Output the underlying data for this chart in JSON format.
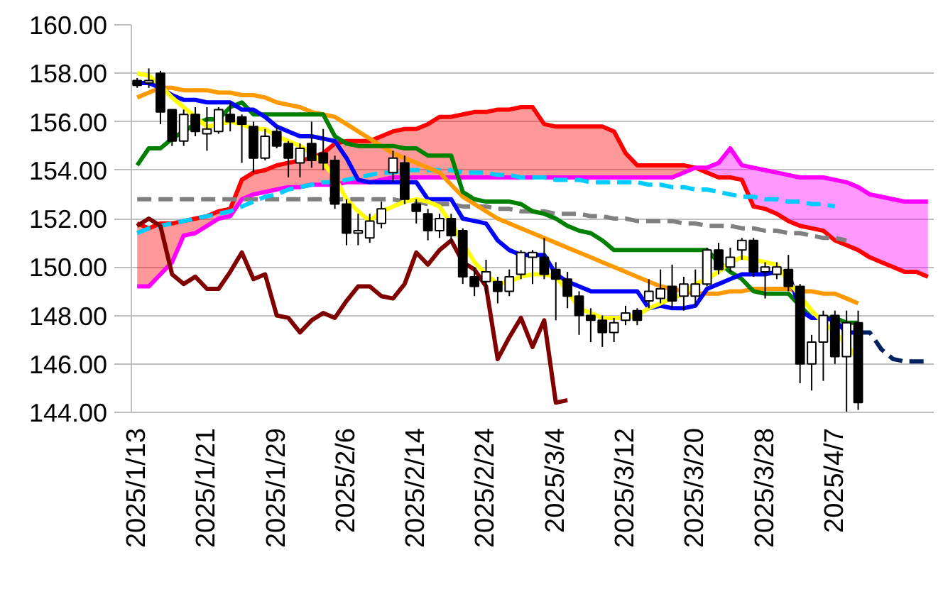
{
  "chart_data": {
    "type": "candlestick",
    "categories": [
      "2025/1/13",
      null,
      null,
      null,
      null,
      null,
      "2025/1/21",
      null,
      null,
      null,
      null,
      null,
      "2025/1/29",
      null,
      null,
      null,
      null,
      null,
      "2025/2/6",
      null,
      null,
      null,
      null,
      null,
      "2025/2/14",
      null,
      null,
      null,
      null,
      null,
      "2025/2/24",
      null,
      null,
      null,
      null,
      null,
      "2025/3/4",
      null,
      null,
      null,
      null,
      null,
      "2025/3/12",
      null,
      null,
      null,
      null,
      null,
      "2025/3/20",
      null,
      null,
      null,
      null,
      null,
      "2025/3/28",
      null,
      null,
      null,
      null,
      null,
      "2025/4/7",
      null,
      null,
      null,
      null,
      null,
      null,
      null,
      null
    ],
    "ohlc": [
      [
        157.7,
        157.8,
        157.4,
        157.5
      ],
      [
        157.6,
        158.2,
        157.4,
        157.7
      ],
      [
        158.0,
        158.1,
        155.9,
        156.4
      ],
      [
        156.5,
        156.5,
        155.0,
        155.2
      ],
      [
        155.2,
        156.5,
        155.0,
        156.3
      ],
      [
        156.3,
        156.6,
        155.4,
        155.6
      ],
      [
        155.5,
        156.6,
        154.8,
        155.7
      ],
      [
        155.6,
        156.6,
        155.5,
        156.5
      ],
      [
        156.3,
        156.8,
        155.6,
        156.0
      ],
      [
        156.2,
        156.3,
        154.3,
        155.9
      ],
      [
        155.8,
        156.0,
        153.9,
        154.5
      ],
      [
        154.5,
        155.7,
        154.4,
        155.4
      ],
      [
        155.6,
        155.8,
        154.9,
        155.0
      ],
      [
        155.1,
        155.2,
        153.7,
        154.5
      ],
      [
        154.3,
        155.1,
        153.7,
        154.9
      ],
      [
        155.1,
        156.0,
        154.1,
        154.4
      ],
      [
        154.7,
        155.7,
        154.0,
        154.3
      ],
      [
        154.4,
        154.6,
        152.4,
        152.6
      ],
      [
        152.6,
        152.8,
        150.9,
        151.4
      ],
      [
        151.4,
        152.2,
        150.9,
        151.5
      ],
      [
        151.2,
        152.2,
        151.0,
        151.9
      ],
      [
        151.8,
        152.7,
        151.6,
        152.4
      ],
      [
        153.9,
        154.8,
        153.5,
        154.5
      ],
      [
        154.3,
        154.6,
        152.6,
        152.8
      ],
      [
        152.6,
        152.8,
        151.8,
        152.3
      ],
      [
        152.2,
        152.4,
        151.1,
        151.5
      ],
      [
        151.5,
        152.2,
        151.2,
        152.0
      ],
      [
        152.0,
        152.2,
        151.0,
        151.3
      ],
      [
        151.5,
        151.6,
        149.3,
        149.6
      ],
      [
        149.6,
        150.0,
        148.8,
        149.2
      ],
      [
        149.4,
        150.3,
        148.9,
        149.8
      ],
      [
        149.4,
        149.6,
        148.5,
        149.0
      ],
      [
        149.0,
        149.9,
        148.8,
        149.6
      ],
      [
        149.7,
        150.7,
        149.5,
        150.6
      ],
      [
        150.4,
        150.7,
        149.3,
        150.6
      ],
      [
        150.4,
        151.2,
        149.5,
        149.7
      ],
      [
        149.9,
        150.2,
        147.8,
        149.5
      ],
      [
        149.5,
        149.8,
        148.3,
        148.8
      ],
      [
        148.8,
        149.0,
        147.2,
        148.0
      ],
      [
        148.0,
        148.3,
        146.9,
        147.8
      ],
      [
        147.8,
        148.0,
        146.7,
        147.3
      ],
      [
        147.3,
        147.9,
        146.9,
        147.7
      ],
      [
        147.8,
        148.4,
        147.6,
        148.1
      ],
      [
        148.2,
        148.3,
        147.6,
        147.8
      ],
      [
        148.6,
        149.5,
        148.3,
        149.0
      ],
      [
        148.7,
        149.9,
        148.5,
        149.1
      ],
      [
        149.2,
        150.1,
        148.3,
        148.6
      ],
      [
        148.8,
        149.6,
        148.2,
        149.3
      ],
      [
        148.8,
        149.9,
        148.4,
        149.3
      ],
      [
        149.3,
        150.8,
        149.2,
        150.7
      ],
      [
        150.7,
        151.0,
        149.7,
        149.9
      ],
      [
        150.0,
        150.8,
        149.8,
        150.4
      ],
      [
        150.7,
        151.2,
        150.3,
        151.1
      ],
      [
        151.1,
        151.2,
        149.6,
        149.8
      ],
      [
        149.8,
        150.2,
        148.7,
        150.0
      ],
      [
        149.7,
        150.2,
        149.5,
        150.0
      ],
      [
        149.9,
        150.5,
        149.0,
        149.2
      ],
      [
        149.2,
        149.3,
        145.2,
        146.0
      ],
      [
        146.0,
        147.2,
        144.9,
        146.9
      ],
      [
        146.9,
        148.2,
        145.3,
        148.0
      ],
      [
        148.0,
        148.2,
        146.0,
        146.3
      ],
      [
        146.3,
        148.2,
        144.0,
        147.7
      ],
      [
        147.7,
        148.2,
        144.1,
        144.4
      ],
      null,
      null,
      null,
      null,
      null,
      null
    ],
    "series": [
      {
        "type": "line",
        "color": "#ff0000",
        "line_style": "solid",
        "values": [
          151.8,
          151.6,
          151.8,
          151.8,
          151.9,
          152.0,
          152.1,
          152.3,
          152.4,
          153.6,
          153.9,
          154.0,
          154.2,
          154.3,
          154.4,
          154.5,
          154.7,
          155.1,
          155.2,
          155.2,
          155.2,
          155.4,
          155.6,
          155.7,
          155.7,
          155.9,
          156.2,
          156.2,
          156.3,
          156.4,
          156.4,
          156.5,
          156.5,
          156.6,
          156.6,
          155.9,
          155.8,
          155.8,
          155.8,
          155.8,
          155.8,
          155.6,
          154.7,
          154.2,
          154.2,
          154.2,
          154.2,
          154.2,
          154.1,
          153.9,
          153.7,
          153.7,
          153.6,
          152.5,
          152.4,
          152.2,
          151.9,
          151.7,
          151.6,
          151.5,
          151.1,
          150.9,
          150.7,
          150.4,
          150.2,
          150.0,
          149.8,
          149.8,
          149.6
        ],
        "upper": [
          151.8,
          151.6,
          151.8,
          151.8,
          151.9,
          152.0,
          152.1,
          152.3,
          152.4,
          153.6,
          153.9,
          154.0,
          154.2,
          154.3,
          154.4,
          154.5,
          154.7,
          155.1,
          155.2,
          155.2,
          155.2,
          155.4,
          155.6,
          155.7,
          155.7,
          155.9,
          156.2,
          156.2,
          156.3,
          156.4,
          156.4,
          156.5,
          156.5,
          156.6,
          156.6,
          155.9,
          155.8,
          155.8,
          155.8,
          155.8,
          155.8,
          155.6,
          154.7,
          154.2,
          154.2,
          154.2,
          154.2,
          154.2,
          154.1,
          null,
          null,
          null,
          null,
          null,
          null,
          null,
          null,
          null,
          null,
          null,
          null,
          null,
          null,
          null,
          null,
          null,
          null,
          null,
          null
        ],
        "lower": [
          149.2,
          149.2,
          149.7,
          150.2,
          151.3,
          151.4,
          151.7,
          152.0,
          152.1,
          152.8,
          153.0,
          153.1,
          153.2,
          153.3,
          153.3,
          153.4,
          153.4,
          153.4,
          153.5,
          153.5,
          153.5,
          153.6,
          153.7,
          153.7,
          153.7,
          153.7,
          153.7,
          153.7,
          153.7,
          153.7,
          153.7,
          153.7,
          153.7,
          153.7,
          153.7,
          153.7,
          153.7,
          153.7,
          153.7,
          153.7,
          153.7,
          153.7,
          153.7,
          153.7,
          153.7,
          153.7,
          153.7,
          153.9,
          154.1,
          null,
          null,
          null,
          null,
          null,
          null,
          null,
          null,
          null,
          null,
          null,
          null,
          null,
          null,
          null,
          null,
          null,
          null,
          null,
          null
        ]
      },
      {
        "type": "line",
        "color": "#ff00ff",
        "line_style": "solid",
        "values": [
          149.2,
          149.2,
          149.7,
          150.2,
          151.3,
          151.4,
          151.7,
          152.0,
          152.1,
          152.8,
          153.0,
          153.1,
          153.2,
          153.3,
          153.3,
          153.4,
          153.4,
          153.4,
          153.5,
          153.5,
          153.5,
          153.6,
          153.7,
          153.7,
          153.7,
          153.7,
          153.7,
          153.7,
          153.7,
          153.7,
          153.7,
          153.7,
          153.7,
          153.7,
          153.7,
          153.7,
          153.7,
          153.7,
          153.7,
          153.7,
          153.7,
          153.7,
          153.7,
          153.7,
          153.7,
          153.7,
          153.7,
          153.9,
          154.1,
          154.1,
          154.3,
          154.9,
          154.2,
          154.1,
          154.0,
          153.9,
          153.8,
          153.7,
          153.7,
          153.7,
          153.6,
          153.5,
          153.3,
          153.0,
          152.9,
          152.8,
          152.7,
          152.7,
          152.7
        ],
        "upper": [
          null,
          null,
          null,
          null,
          null,
          null,
          null,
          null,
          null,
          null,
          null,
          null,
          null,
          null,
          null,
          null,
          null,
          null,
          null,
          null,
          null,
          null,
          null,
          null,
          null,
          null,
          null,
          null,
          null,
          null,
          null,
          null,
          null,
          null,
          null,
          null,
          null,
          null,
          null,
          null,
          null,
          null,
          null,
          null,
          null,
          null,
          null,
          null,
          154.1,
          154.1,
          154.3,
          154.9,
          154.2,
          154.1,
          154.0,
          153.9,
          153.8,
          153.7,
          153.7,
          153.7,
          153.6,
          153.5,
          153.3,
          153.0,
          152.9,
          152.8,
          152.7,
          152.7,
          152.7
        ],
        "lower": [
          null,
          null,
          null,
          null,
          null,
          null,
          null,
          null,
          null,
          null,
          null,
          null,
          null,
          null,
          null,
          null,
          null,
          null,
          null,
          null,
          null,
          null,
          null,
          null,
          null,
          null,
          null,
          null,
          null,
          null,
          null,
          null,
          null,
          null,
          null,
          null,
          null,
          null,
          null,
          null,
          null,
          null,
          null,
          null,
          null,
          null,
          null,
          null,
          154.1,
          153.9,
          153.7,
          153.7,
          153.6,
          152.5,
          152.4,
          152.2,
          151.9,
          151.7,
          151.6,
          151.5,
          151.1,
          150.9,
          150.7,
          150.4,
          150.2,
          150.0,
          149.8,
          149.8,
          149.6
        ]
      },
      {
        "type": "line",
        "color": "#808080",
        "line_style": "dashed",
        "values": [
          152.8,
          152.8,
          152.8,
          152.8,
          152.8,
          152.8,
          152.8,
          152.8,
          152.8,
          152.8,
          152.8,
          152.8,
          152.8,
          152.8,
          152.8,
          152.8,
          152.8,
          152.8,
          152.8,
          152.8,
          152.8,
          152.8,
          152.8,
          152.7,
          152.7,
          152.6,
          152.6,
          152.6,
          152.5,
          152.5,
          152.5,
          152.4,
          152.4,
          152.3,
          152.3,
          152.3,
          152.2,
          152.2,
          152.2,
          152.1,
          152.1,
          152.0,
          152.0,
          151.9,
          151.9,
          151.9,
          151.9,
          151.8,
          151.8,
          151.7,
          151.7,
          151.7,
          151.6,
          151.6,
          151.5,
          151.5,
          151.4,
          151.4,
          151.3,
          151.2,
          151.2,
          151.1,
          null,
          null,
          null,
          null,
          null,
          null,
          null
        ]
      },
      {
        "type": "line",
        "color": "#00ccff",
        "line_style": "dashed",
        "values": [
          151.4,
          151.6,
          151.7,
          151.8,
          151.9,
          152.0,
          152.1,
          152.2,
          152.3,
          152.5,
          152.7,
          152.9,
          153.0,
          153.2,
          153.3,
          153.4,
          153.5,
          153.5,
          153.6,
          153.7,
          153.8,
          153.9,
          153.9,
          154.0,
          154.0,
          154.0,
          154.0,
          154.0,
          153.9,
          153.9,
          153.9,
          153.8,
          153.8,
          153.7,
          153.7,
          153.7,
          153.6,
          153.6,
          153.6,
          153.5,
          153.5,
          153.5,
          153.5,
          153.5,
          153.4,
          153.4,
          153.3,
          153.3,
          153.2,
          153.2,
          153.1,
          153.0,
          152.9,
          152.9,
          152.8,
          152.8,
          152.7,
          152.7,
          152.6,
          152.6,
          152.5,
          null,
          null,
          null,
          null,
          null,
          null,
          null,
          null
        ]
      },
      {
        "type": "line",
        "color": "#ff9900",
        "line_style": "solid",
        "values": [
          157.0,
          157.2,
          157.4,
          157.4,
          157.3,
          157.3,
          157.3,
          157.2,
          157.2,
          157.1,
          157.1,
          157.0,
          156.8,
          156.7,
          156.6,
          156.4,
          156.3,
          156.2,
          155.9,
          155.6,
          155.3,
          155.0,
          154.7,
          154.5,
          154.3,
          154.1,
          153.9,
          153.4,
          152.9,
          152.6,
          152.3,
          152.0,
          151.8,
          151.6,
          151.4,
          151.2,
          151.0,
          150.8,
          150.6,
          150.4,
          150.2,
          150.0,
          149.8,
          149.6,
          149.4,
          149.2,
          149.1,
          149.0,
          148.9,
          148.9,
          148.9,
          149.0,
          149.0,
          149.1,
          149.1,
          149.1,
          149.1,
          149.0,
          149.0,
          148.9,
          148.9,
          148.7,
          148.5,
          null,
          null,
          null,
          null,
          null,
          null
        ]
      },
      {
        "type": "line",
        "color": "#008000",
        "line_style": "solid",
        "values": [
          154.2,
          154.9,
          154.9,
          155.3,
          155.6,
          155.9,
          156.1,
          156.1,
          156.6,
          156.8,
          156.3,
          156.3,
          156.3,
          156.3,
          156.3,
          156.3,
          156.3,
          155.4,
          155.1,
          155.0,
          155.0,
          155.0,
          155.0,
          154.9,
          154.9,
          154.6,
          154.6,
          154.6,
          153.1,
          152.8,
          152.7,
          152.7,
          152.7,
          152.6,
          152.3,
          152.2,
          152.0,
          151.7,
          151.5,
          151.4,
          151.1,
          150.7,
          150.7,
          150.7,
          150.7,
          150.7,
          150.7,
          150.7,
          150.7,
          150.7,
          150.2,
          149.8,
          149.5,
          149.0,
          148.9,
          148.9,
          148.9,
          148.4,
          147.9,
          147.9,
          147.9,
          147.7,
          147.7,
          null,
          null,
          null,
          null,
          null,
          null
        ]
      },
      {
        "type": "line",
        "color": "#0000ff",
        "line_style": "solid",
        "values": [
          157.6,
          157.6,
          157.4,
          157.1,
          156.9,
          156.9,
          156.8,
          156.8,
          156.8,
          156.5,
          156.5,
          156.2,
          155.8,
          155.6,
          155.4,
          155.4,
          155.3,
          155.2,
          154.5,
          153.6,
          153.5,
          153.5,
          153.5,
          153.5,
          153.5,
          152.8,
          152.8,
          152.8,
          152.0,
          151.9,
          151.8,
          151.1,
          150.7,
          150.5,
          150.5,
          150.5,
          149.7,
          149.4,
          149.2,
          149.0,
          149.0,
          149.0,
          149.0,
          149.0,
          148.3,
          148.4,
          148.3,
          148.3,
          148.4,
          149.1,
          149.3,
          149.5,
          149.7,
          149.7,
          149.7,
          149.8,
          149.8,
          148.2,
          147.9,
          147.9,
          147.8,
          147.3,
          147.3,
          null,
          null,
          null,
          null,
          null,
          null
        ]
      },
      {
        "type": "line",
        "color": "#ffff00",
        "line_style": "solid",
        "values": [
          158.0,
          157.9,
          157.5,
          157.0,
          156.6,
          156.2,
          155.8,
          155.9,
          156.0,
          155.9,
          155.7,
          155.7,
          155.4,
          155.2,
          155.0,
          154.7,
          154.3,
          153.7,
          152.8,
          152.3,
          151.9,
          152.3,
          152.5,
          152.7,
          152.8,
          152.7,
          152.5,
          151.8,
          151.0,
          150.2,
          149.7,
          149.3,
          149.4,
          149.6,
          149.7,
          149.7,
          149.6,
          149.0,
          148.3,
          148.1,
          147.9,
          147.9,
          147.9,
          148.0,
          148.3,
          148.5,
          148.7,
          148.9,
          149.3,
          149.5,
          149.8,
          150.2,
          150.4,
          150.3,
          150.2,
          150.1,
          149.4,
          148.8,
          148.2,
          147.7,
          147.3,
          146.8,
          146.2,
          null,
          null,
          null,
          null,
          null,
          null
        ]
      },
      {
        "type": "line",
        "color": "#800000",
        "line_style": "solid",
        "values": [
          151.7,
          152.0,
          151.7,
          149.7,
          149.3,
          149.6,
          149.1,
          149.1,
          149.8,
          150.6,
          149.5,
          149.7,
          148.0,
          147.9,
          147.3,
          147.8,
          148.1,
          147.9,
          148.6,
          149.2,
          149.2,
          148.8,
          148.7,
          149.3,
          150.6,
          150.1,
          150.7,
          151.1,
          150.2,
          149.9,
          149.2,
          146.2,
          147.1,
          147.9,
          146.7,
          147.8,
          144.4,
          144.5,
          null,
          null,
          null,
          null,
          null,
          null,
          null,
          null,
          null,
          null,
          null,
          null,
          null,
          null,
          null,
          null,
          null,
          null,
          null,
          null,
          null,
          null,
          null,
          null,
          null,
          null,
          null,
          null,
          null,
          null,
          null
        ]
      },
      {
        "type": "line",
        "color": "#002060",
        "line_style": "dashed",
        "values": [
          null,
          null,
          null,
          null,
          null,
          null,
          null,
          null,
          null,
          null,
          null,
          null,
          null,
          null,
          null,
          null,
          null,
          null,
          null,
          null,
          null,
          null,
          null,
          null,
          null,
          null,
          null,
          null,
          null,
          null,
          null,
          null,
          null,
          null,
          null,
          null,
          null,
          null,
          null,
          null,
          null,
          null,
          null,
          null,
          null,
          null,
          null,
          null,
          null,
          null,
          null,
          null,
          null,
          null,
          null,
          null,
          null,
          null,
          null,
          null,
          null,
          null,
          147.3,
          147.3,
          146.6,
          146.2,
          146.1,
          146.1,
          146.1
        ]
      }
    ],
    "ylim": [
      144,
      160
    ],
    "yticks": [
      {
        "value": 144,
        "label": "144.00"
      },
      {
        "value": 146,
        "label": "146.00"
      },
      {
        "value": 148,
        "label": "148.00"
      },
      {
        "value": 150,
        "label": "150.00"
      },
      {
        "value": 152,
        "label": "152.00"
      },
      {
        "value": 154,
        "label": "154.00"
      },
      {
        "value": 156,
        "label": "156.00"
      },
      {
        "value": 158,
        "label": "158.00"
      },
      {
        "value": 160,
        "label": "160.00"
      }
    ],
    "grid": "y"
  }
}
